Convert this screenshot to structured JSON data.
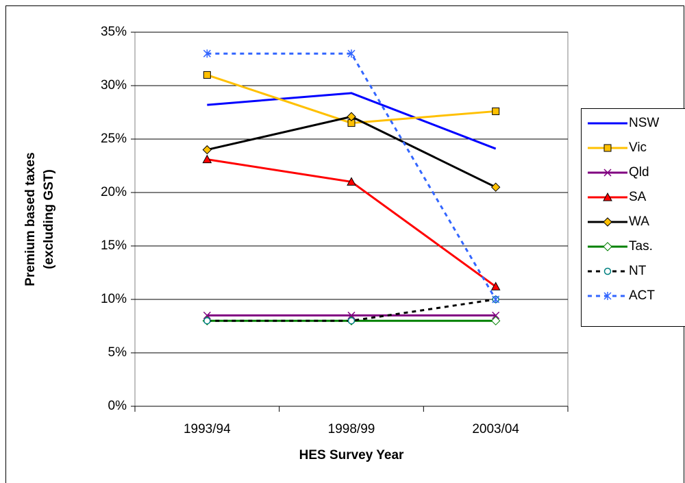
{
  "chart_data": {
    "type": "line",
    "y_label": [
      "Premium based taxes",
      "(excluding GST)"
    ],
    "x_label": "HES Survey Year",
    "categories": [
      "1993/94",
      "1998/99",
      "2003/04"
    ],
    "ylim": [
      0,
      35
    ],
    "yticks": [
      {
        "value": 0,
        "label": "0%"
      },
      {
        "value": 5,
        "label": "5%"
      },
      {
        "value": 10,
        "label": "10%"
      },
      {
        "value": 15,
        "label": "15%"
      },
      {
        "value": 20,
        "label": "20%"
      },
      {
        "value": 25,
        "label": "25%"
      },
      {
        "value": 30,
        "label": "30%"
      },
      {
        "value": 35,
        "label": "35%"
      }
    ],
    "grid": true,
    "legend": "right",
    "series": [
      {
        "name": "NSW",
        "color": "#0000ff",
        "marker": "none",
        "dashed": false,
        "values": [
          28.2,
          29.3,
          24.1
        ]
      },
      {
        "name": "Vic",
        "color": "#ffc000",
        "marker": "square",
        "dashed": false,
        "values": [
          31.0,
          26.5,
          27.6
        ]
      },
      {
        "name": "Qld",
        "color": "#800080",
        "marker": "cross",
        "dashed": false,
        "values": [
          8.5,
          8.5,
          8.5
        ]
      },
      {
        "name": "SA",
        "color": "#ff0000",
        "marker": "triangle",
        "dashed": false,
        "values": [
          23.1,
          21.0,
          11.2
        ]
      },
      {
        "name": "WA",
        "color": "#000000",
        "marker": "diamond",
        "dashed": false,
        "values": [
          24.0,
          27.1,
          20.5
        ]
      },
      {
        "name": "Tas.",
        "color": "#008000",
        "marker": "diamond-open",
        "dashed": false,
        "values": [
          8.0,
          8.0,
          8.0
        ]
      },
      {
        "name": "NT",
        "color": "#000000",
        "marker": "circle",
        "dashed": true,
        "values": [
          8.0,
          8.0,
          10.0
        ]
      },
      {
        "name": "ACT",
        "color": "#3366ff",
        "marker": "star",
        "dashed": true,
        "values": [
          33.0,
          33.0,
          10.0
        ]
      }
    ]
  }
}
